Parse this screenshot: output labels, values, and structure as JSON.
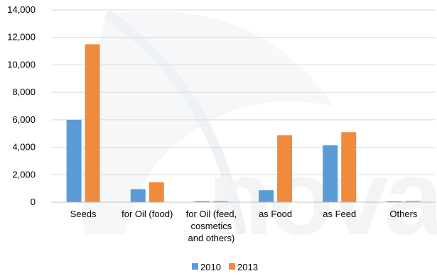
{
  "chart_data": {
    "type": "bar",
    "title": "",
    "xlabel": "",
    "ylabel": "",
    "categories": [
      [
        "Seeds"
      ],
      [
        "for Oil (food)"
      ],
      [
        "for Oil (feed,",
        "cosmetics",
        "and others)"
      ],
      [
        "as Food"
      ],
      [
        "as Feed"
      ],
      [
        "Others"
      ]
    ],
    "series": [
      {
        "name": "2010",
        "color": "#5b9bd5",
        "values": [
          6000,
          950,
          80,
          870,
          4150,
          80
        ]
      },
      {
        "name": "2013",
        "color": "#f08a3c",
        "values": [
          11500,
          1450,
          80,
          4880,
          5100,
          80
        ]
      }
    ],
    "ylim": [
      0,
      14000
    ],
    "yticks": [
      {
        "value": 0,
        "label": "0"
      },
      {
        "value": 2000,
        "label": "2,000"
      },
      {
        "value": 4000,
        "label": "4,000"
      },
      {
        "value": 6000,
        "label": "6,000"
      },
      {
        "value": 8000,
        "label": "8,000"
      },
      {
        "value": 10000,
        "label": "10,000"
      },
      {
        "value": 12000,
        "label": "12,000"
      },
      {
        "value": 14000,
        "label": "14,000"
      }
    ],
    "grid": true,
    "legend": "bottom",
    "watermark_text": "nova"
  }
}
